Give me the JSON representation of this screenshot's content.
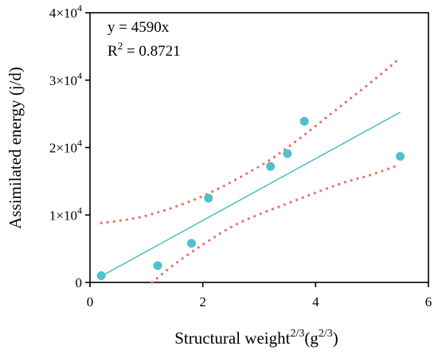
{
  "chart_data": {
    "type": "scatter",
    "xlabel_base": "Structural weight",
    "xlabel_exp": "2/3",
    "xlabel_unit_open": "(g",
    "xlabel_unit_exp": "2/3",
    "xlabel_unit_close": ")",
    "ylabel": "Assimilated energy (j/d)",
    "xlim": [
      0,
      6
    ],
    "ylim": [
      0,
      40000
    ],
    "x_ticks": [
      {
        "value": 0,
        "label": "0"
      },
      {
        "value": 2,
        "label": "2"
      },
      {
        "value": 4,
        "label": "4"
      },
      {
        "value": 6,
        "label": "6"
      }
    ],
    "y_ticks": [
      {
        "value": 0,
        "label": "0",
        "exp": ""
      },
      {
        "value": 10000,
        "label": "1×10",
        "exp": "4"
      },
      {
        "value": 20000,
        "label": "2×10",
        "exp": "4"
      },
      {
        "value": 30000,
        "label": "3×10",
        "exp": "4"
      },
      {
        "value": 40000,
        "label": "4×10",
        "exp": "4"
      }
    ],
    "points": [
      {
        "x": 0.2,
        "y": 1000
      },
      {
        "x": 1.2,
        "y": 2500
      },
      {
        "x": 1.8,
        "y": 5800
      },
      {
        "x": 2.1,
        "y": 12500
      },
      {
        "x": 3.2,
        "y": 17200
      },
      {
        "x": 3.5,
        "y": 19100
      },
      {
        "x": 3.8,
        "y": 23900
      },
      {
        "x": 5.5,
        "y": 18700
      }
    ],
    "fit_line": {
      "slope": 4590,
      "x_range": [
        0.2,
        5.5
      ]
    },
    "ci_upper": [
      [
        0.2,
        8800
      ],
      [
        1.0,
        9900
      ],
      [
        2.0,
        12800
      ],
      [
        3.0,
        17200
      ],
      [
        3.5,
        20000
      ],
      [
        4.0,
        23200
      ],
      [
        4.5,
        26500
      ],
      [
        5.0,
        29800
      ],
      [
        5.5,
        33300
      ]
    ],
    "ci_lower": [
      [
        1.1,
        0
      ],
      [
        1.5,
        2700
      ],
      [
        2.0,
        5600
      ],
      [
        2.5,
        8200
      ],
      [
        3.0,
        10100
      ],
      [
        3.5,
        11700
      ],
      [
        4.0,
        13300
      ],
      [
        4.5,
        14800
      ],
      [
        5.0,
        16000
      ],
      [
        5.5,
        17500
      ]
    ],
    "annotations": {
      "equation": "y = 4590x",
      "r2_base": "R",
      "r2_exp": "2",
      "r2_value": " = 0.8721"
    },
    "colors": {
      "points": "#4fc1c9",
      "fit_line": "#4fc1c9",
      "ci": "#f0706a",
      "axis": "#000000"
    },
    "grid": false
  }
}
